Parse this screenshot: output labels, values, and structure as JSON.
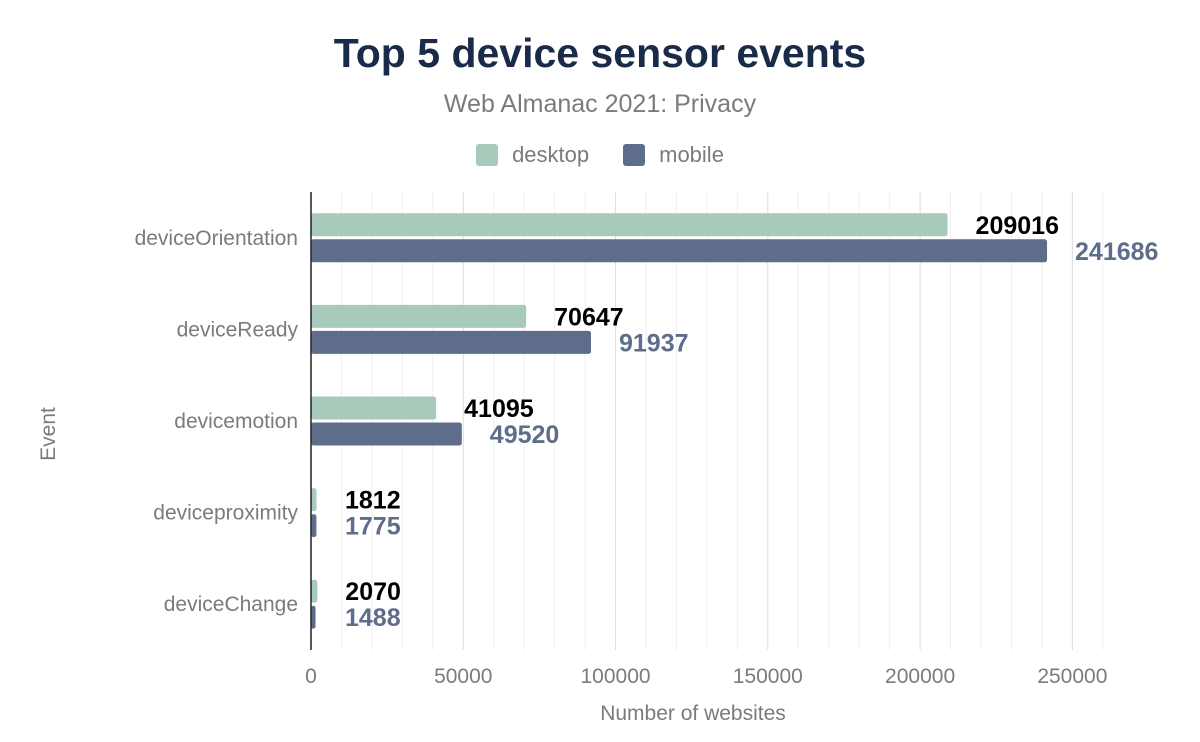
{
  "chart_data": {
    "type": "bar",
    "orientation": "horizontal",
    "title": "Top 5 device sensor events",
    "subtitle": "Web Almanac 2021: Privacy",
    "xlabel": "Number of websites",
    "ylabel": "Event",
    "categories": [
      "deviceOrientation",
      "deviceReady",
      "devicemotion",
      "deviceproximity",
      "deviceChange"
    ],
    "series": [
      {
        "name": "desktop",
        "color": "#a8cabb",
        "label_color": "#000000",
        "values": [
          209016,
          70647,
          41095,
          1812,
          2070
        ]
      },
      {
        "name": "mobile",
        "color": "#5e6e8a",
        "label_color": "#5e6e8a",
        "values": [
          241686,
          91937,
          49520,
          1775,
          1488
        ]
      }
    ],
    "xlim": [
      0,
      264000
    ],
    "xticks": [
      0,
      50000,
      100000,
      150000,
      200000,
      250000
    ],
    "xtick_labels": [
      "0",
      "50000",
      "100000",
      "150000",
      "200000",
      "250000"
    ],
    "grid": true,
    "legend_position": "top"
  }
}
